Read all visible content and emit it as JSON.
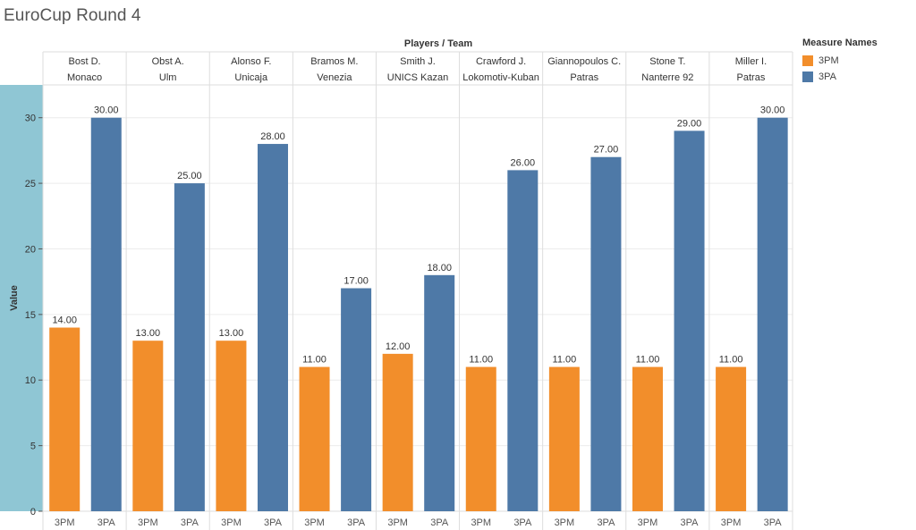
{
  "title": "EuroCup Round 4",
  "colors": {
    "3PM": "#f28e2b",
    "3PA": "#4e79a7",
    "axis_band": "#8fc6d4"
  },
  "legend": {
    "title": "Measure Names",
    "items": [
      "3PM",
      "3PA"
    ]
  },
  "chart_data": {
    "type": "bar",
    "column_header_title": "Players / Team",
    "ylabel": "Value",
    "xlabel": "",
    "ylim": [
      0,
      32.5
    ],
    "yticks": [
      0,
      5,
      10,
      15,
      20,
      25,
      30
    ],
    "grid": true,
    "legend_position": "right",
    "measures": [
      "3PM",
      "3PA"
    ],
    "groups": [
      {
        "player": "Bost D.",
        "team": "Monaco",
        "values": [
          14,
          30
        ]
      },
      {
        "player": "Obst A.",
        "team": "Ulm",
        "values": [
          13,
          25
        ]
      },
      {
        "player": "Alonso F.",
        "team": "Unicaja",
        "values": [
          13,
          28
        ]
      },
      {
        "player": "Bramos M.",
        "team": "Venezia",
        "values": [
          11,
          17
        ]
      },
      {
        "player": "Smith J.",
        "team": "UNICS Kazan",
        "values": [
          12,
          18
        ]
      },
      {
        "player": "Crawford J.",
        "team": "Lokomotiv-Kuban",
        "values": [
          11,
          26
        ]
      },
      {
        "player": "Giannopoulos C.",
        "team": "Patras",
        "values": [
          11,
          27
        ]
      },
      {
        "player": "Stone T.",
        "team": "Nanterre 92",
        "values": [
          11,
          29
        ]
      },
      {
        "player": "Miller I.",
        "team": "Patras",
        "values": [
          11,
          30
        ]
      }
    ]
  }
}
